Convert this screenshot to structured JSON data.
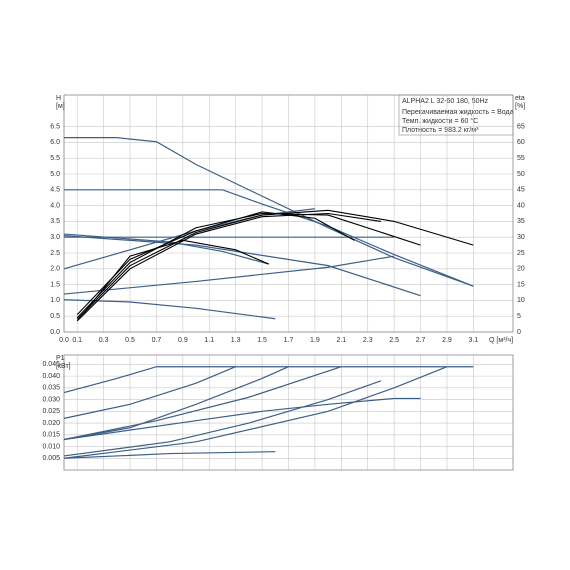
{
  "chart_data": [
    {
      "type": "line",
      "ylabel": "H\n[м]",
      "y2label": "eta\n[%]",
      "xlabel": "Q [м³/ч]",
      "annotations": [
        "ALPHA2 L 32-60 180, 50Hz",
        "Перекачиваемая жидкость = Вода",
        "Темп. жидкости = 60 °C",
        "Плотность = 983.2 кг/м³"
      ],
      "xlim": [
        0,
        3.4
      ],
      "xticks": [
        {
          "value": 0,
          "label": "0.0"
        },
        0.1,
        0.3,
        0.5,
        0.7,
        0.9,
        1.1,
        1.3,
        1.5,
        1.7,
        1.9,
        2.1,
        2.3,
        2.5,
        2.7,
        2.9,
        3.1
      ],
      "ylim": [
        0,
        7.5
      ],
      "yticks": [
        {
          "value": 0,
          "label": "0.0"
        },
        0.5,
        {
          "value": 1,
          "label": "1.0"
        },
        1.5,
        {
          "value": 2,
          "label": "2.0"
        },
        2.5,
        {
          "value": 3,
          "label": "3.0"
        },
        3.5,
        {
          "value": 4,
          "label": "4.0"
        },
        4.5,
        {
          "value": 5,
          "label": "5.0"
        },
        5.5,
        {
          "value": 6,
          "label": "6.0"
        },
        6.5
      ],
      "y2lim": [
        0,
        75
      ],
      "y2ticks": [
        0,
        5,
        10,
        15,
        20,
        25,
        30,
        35,
        40,
        45,
        50,
        55,
        60,
        65
      ],
      "grid": true,
      "series": [
        {
          "color": "#3d5f86",
          "x": [
            0,
            0.4,
            0.7,
            1.0,
            1.5,
            2.0,
            2.5,
            3.1
          ],
          "values": [
            6.15,
            6.15,
            6.02,
            5.3,
            4.3,
            3.3,
            2.35,
            1.45
          ]
        },
        {
          "color": "#3d5f86",
          "x": [
            0,
            1.2,
            1.5,
            2.0,
            2.5,
            3.1
          ],
          "values": [
            4.5,
            4.5,
            4.05,
            3.35,
            2.45,
            1.45
          ]
        },
        {
          "color": "#3d5f86",
          "x": [
            0,
            2.5
          ],
          "values": [
            3.0,
            3.0
          ]
        },
        {
          "color": "#3d5f86",
          "x": [
            0,
            0.5,
            1.0,
            1.5,
            1.9
          ],
          "values": [
            2.0,
            2.6,
            3.2,
            3.7,
            3.9
          ]
        },
        {
          "color": "#3d5f86",
          "x": [
            0,
            1.0,
            2.0,
            2.5
          ],
          "values": [
            1.2,
            1.6,
            2.05,
            2.4
          ]
        },
        {
          "color": "#3d5f86",
          "x": [
            0,
            1.0,
            2.0,
            2.7
          ],
          "values": [
            3.05,
            2.75,
            2.1,
            1.15
          ]
        },
        {
          "color": "#3d5f86",
          "x": [
            0,
            0.8,
            1.2,
            1.55
          ],
          "values": [
            3.1,
            2.85,
            2.55,
            2.15
          ]
        },
        {
          "color": "#3d5f86",
          "x": [
            0,
            0.5,
            1.0,
            1.6
          ],
          "values": [
            1.02,
            0.95,
            0.75,
            0.42
          ]
        },
        {
          "color": "#000000",
          "x": [
            0.1,
            0.5,
            1.0,
            1.5,
            2.0,
            2.5,
            3.1
          ],
          "values": [
            0.4,
            2.1,
            3.15,
            3.7,
            3.85,
            3.5,
            2.75
          ]
        },
        {
          "color": "#000000",
          "x": [
            0.1,
            0.5,
            1.0,
            1.5,
            2.0,
            2.4
          ],
          "values": [
            0.35,
            2.0,
            3.1,
            3.65,
            3.75,
            3.5
          ]
        },
        {
          "color": "#000000",
          "x": [
            0.1,
            0.5,
            1.0,
            1.5,
            2.0,
            2.7
          ],
          "values": [
            0.45,
            2.2,
            3.3,
            3.75,
            3.7,
            2.75
          ]
        },
        {
          "color": "#000000",
          "x": [
            0.1,
            0.5,
            1.0,
            1.5,
            1.9,
            2.2
          ],
          "values": [
            0.55,
            2.3,
            3.2,
            3.8,
            3.6,
            2.9
          ]
        },
        {
          "color": "#000000",
          "x": [
            0.15,
            0.5,
            0.9,
            1.3,
            1.55
          ],
          "values": [
            0.6,
            2.4,
            2.9,
            2.6,
            2.15
          ]
        }
      ]
    },
    {
      "type": "line",
      "ylabel": "P1\n[кВт]",
      "xlim": [
        0,
        3.4
      ],
      "ylim": [
        0,
        0.049
      ],
      "yticks": [
        {
          "value": 0.005,
          "label": "0.005"
        },
        {
          "value": 0.01,
          "label": "0.010"
        },
        {
          "value": 0.015,
          "label": "0.015"
        },
        {
          "value": 0.02,
          "label": "0.020"
        },
        {
          "value": 0.025,
          "label": "0.025"
        },
        {
          "value": 0.03,
          "label": "0.030"
        },
        {
          "value": 0.035,
          "label": "0.035"
        },
        {
          "value": 0.04,
          "label": "0.040"
        },
        {
          "value": 0.045,
          "label": "0.045"
        }
      ],
      "grid": true,
      "series": [
        {
          "color": "#3d5f86",
          "x": [
            0,
            0.4,
            0.7,
            3.1
          ],
          "values": [
            0.033,
            0.039,
            0.044,
            0.044
          ]
        },
        {
          "color": "#3d5f86",
          "x": [
            0,
            0.5,
            1.0,
            1.3
          ],
          "values": [
            0.022,
            0.028,
            0.037,
            0.044
          ]
        },
        {
          "color": "#3d5f86",
          "x": [
            0,
            0.5,
            1.0,
            1.5,
            1.7
          ],
          "values": [
            0.013,
            0.018,
            0.028,
            0.039,
            0.044
          ]
        },
        {
          "color": "#3d5f86",
          "x": [
            0,
            0.7,
            1.4,
            2.1
          ],
          "values": [
            0.013,
            0.021,
            0.031,
            0.044
          ]
        },
        {
          "color": "#3d5f86",
          "x": [
            0,
            1.0,
            2.0,
            2.5,
            2.9
          ],
          "values": [
            0.005,
            0.012,
            0.025,
            0.035,
            0.044
          ]
        },
        {
          "color": "#3d5f86",
          "x": [
            0,
            1.0,
            1.5,
            2.0,
            2.5,
            2.7
          ],
          "values": [
            0.013,
            0.021,
            0.025,
            0.028,
            0.0305,
            0.0305
          ]
        },
        {
          "color": "#3d5f86",
          "x": [
            0,
            0.8,
            1.4,
            2.0,
            2.4
          ],
          "values": [
            0.006,
            0.012,
            0.02,
            0.03,
            0.038
          ]
        },
        {
          "color": "#3d5f86",
          "x": [
            0,
            0.8,
            1.6
          ],
          "values": [
            0.005,
            0.007,
            0.0078
          ]
        }
      ]
    }
  ]
}
